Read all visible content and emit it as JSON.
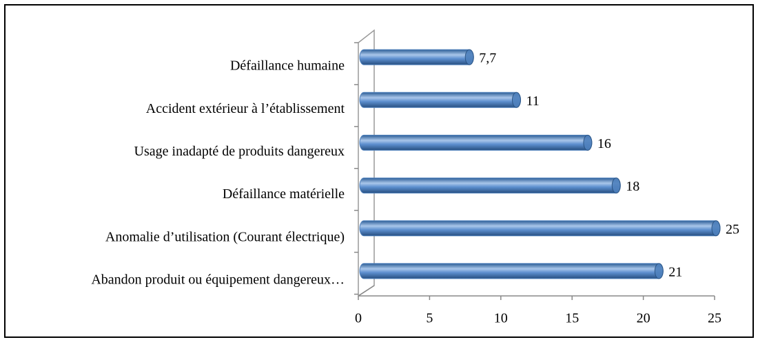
{
  "chart_data": {
    "type": "bar",
    "orientation": "horizontal",
    "categories": [
      "Défaillance humaine",
      "Accident extérieur à l’établissement",
      "Usage inadapté de produits dangereux",
      "Défaillance matérielle",
      "Anomalie d’utilisation (Courant électrique)",
      "Abandon produit ou équipement dangereux…"
    ],
    "values": [
      7.7,
      11,
      16,
      18,
      25,
      21
    ],
    "value_labels": [
      "7,7",
      "11",
      "16",
      "18",
      "25",
      "21"
    ],
    "color": "#4f81bd",
    "xlim": [
      0,
      25
    ],
    "xticks": [
      0,
      5,
      10,
      15,
      20,
      25
    ],
    "grid": false
  }
}
